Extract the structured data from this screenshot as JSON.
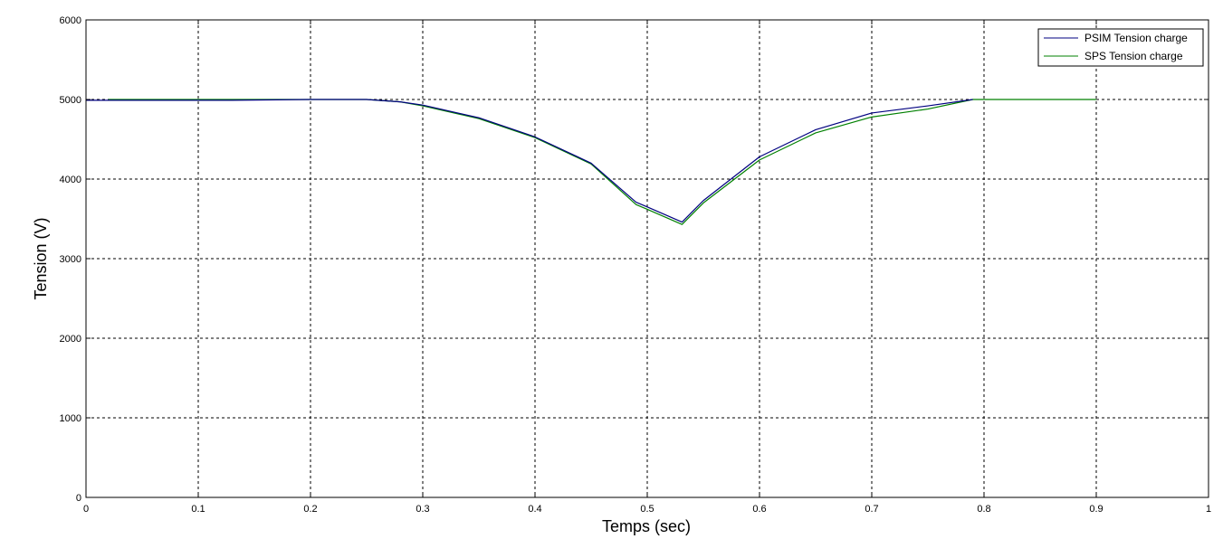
{
  "chart_data": {
    "type": "line",
    "xlabel": "Temps (sec)",
    "ylabel": "Tension (V)",
    "xlim": [
      0,
      1
    ],
    "ylim": [
      0,
      6000
    ],
    "x_ticks": [
      "0",
      "0.1",
      "0.2",
      "0.3",
      "0.4",
      "0.5",
      "0.6",
      "0.7",
      "0.8",
      "0.9",
      "1"
    ],
    "x_tick_values": [
      0,
      0.1,
      0.2,
      0.3,
      0.4,
      0.5,
      0.6,
      0.7,
      0.8,
      0.9,
      1
    ],
    "y_ticks": [
      "0",
      "1000",
      "2000",
      "3000",
      "4000",
      "5000",
      "6000"
    ],
    "y_tick_values": [
      0,
      1000,
      2000,
      3000,
      4000,
      5000,
      6000
    ],
    "grid": true,
    "legend_position": "top-right",
    "series": [
      {
        "name": "PSIM Tension charge",
        "color": "#000080",
        "x": [
          0,
          0.02,
          0.11,
          0.13,
          0.2,
          0.25,
          0.28,
          0.3,
          0.35,
          0.4,
          0.45,
          0.49,
          0.5,
          0.531,
          0.55,
          0.6,
          0.65,
          0.7,
          0.75,
          0.79
        ],
        "y": [
          4990,
          4990,
          4990,
          4990,
          5000,
          5000,
          4970,
          4930,
          4770,
          4530,
          4200,
          3710,
          3650,
          3460,
          3730,
          4280,
          4620,
          4830,
          4920,
          5000
        ]
      },
      {
        "name": "SPS Tension charge",
        "color": "#008000",
        "x": [
          0.02,
          0.1,
          0.2,
          0.25,
          0.28,
          0.3,
          0.35,
          0.4,
          0.45,
          0.49,
          0.5,
          0.531,
          0.55,
          0.6,
          0.65,
          0.7,
          0.75,
          0.79,
          0.85,
          0.9
        ],
        "y": [
          5000,
          5000,
          5000,
          5000,
          4970,
          4920,
          4760,
          4520,
          4190,
          3680,
          3620,
          3430,
          3700,
          4240,
          4580,
          4780,
          4880,
          5000,
          5000,
          5000
        ]
      }
    ]
  }
}
